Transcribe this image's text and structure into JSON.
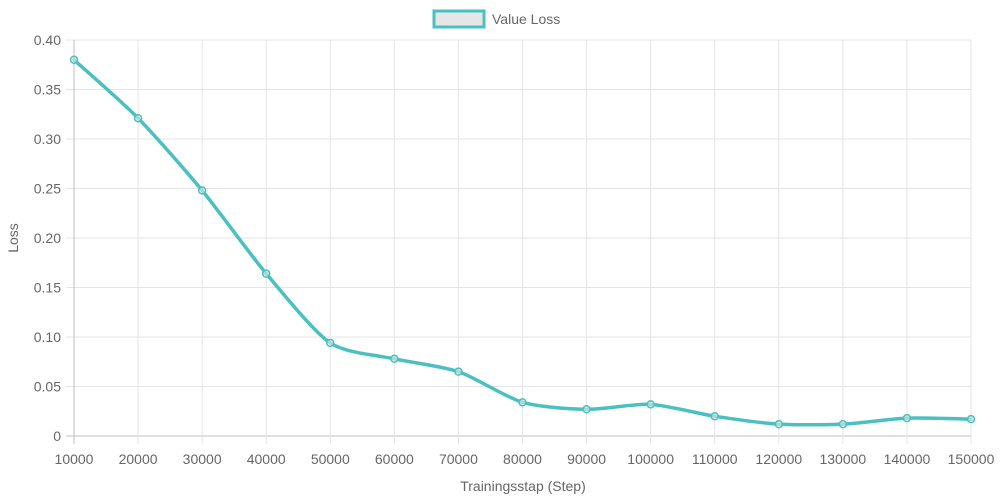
{
  "chart_data": {
    "type": "line",
    "title": "",
    "xlabel": "Trainingsstap (Step)",
    "ylabel": "Loss",
    "x": [
      10000,
      20000,
      30000,
      40000,
      50000,
      60000,
      70000,
      80000,
      90000,
      100000,
      110000,
      120000,
      130000,
      140000,
      150000
    ],
    "x_tick_labels": [
      "10000",
      "20000",
      "30000",
      "40000",
      "50000",
      "60000",
      "70000",
      "80000",
      "90000",
      "100000",
      "110000",
      "120000",
      "130000",
      "140000",
      "150000"
    ],
    "y_ticks": [
      0,
      0.05,
      0.1,
      0.15,
      0.2,
      0.25,
      0.3,
      0.35,
      0.4
    ],
    "y_tick_labels": [
      "0",
      "0.05",
      "0.10",
      "0.15",
      "0.20",
      "0.25",
      "0.30",
      "0.35",
      "0.40"
    ],
    "xlim": [
      10000,
      150000
    ],
    "ylim": [
      0,
      0.4
    ],
    "grid": true,
    "legend_position": "top-center",
    "series": [
      {
        "name": "Value Loss",
        "color": "#4bc0c0",
        "fill_color": "#e6e6e6",
        "values": [
          0.38,
          0.321,
          0.248,
          0.164,
          0.094,
          0.078,
          0.065,
          0.034,
          0.027,
          0.032,
          0.02,
          0.012,
          0.012,
          0.018,
          0.017
        ]
      }
    ]
  }
}
